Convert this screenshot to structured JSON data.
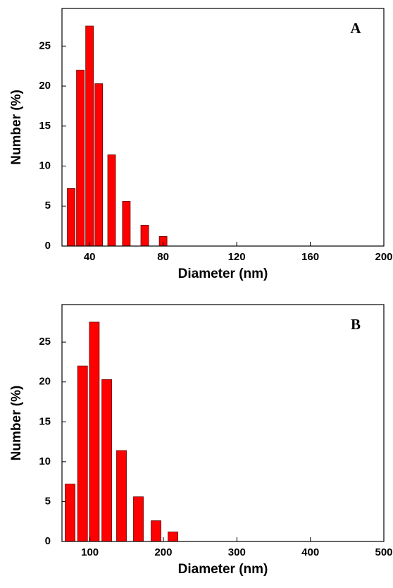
{
  "chart_data": [
    {
      "type": "bar",
      "title": "A",
      "xlabel": "Diameter (nm)",
      "ylabel": "Number (%)",
      "x": [
        30,
        35,
        40,
        45,
        52,
        60,
        70,
        80
      ],
      "values": [
        7.2,
        22,
        27.5,
        20.3,
        11.4,
        5.6,
        2.6,
        1.2
      ],
      "color": "#ff0000",
      "xlim": [
        25,
        200
      ],
      "xticks": [
        40,
        80,
        120,
        160,
        200
      ],
      "ylim": [
        0,
        29.7
      ],
      "yticks": [
        0,
        5,
        10,
        15,
        20,
        25
      ]
    },
    {
      "type": "bar",
      "title": "B",
      "xlabel": "Diameter (nm)",
      "ylabel": "Number (%)",
      "x": [
        73,
        90,
        106,
        123,
        143,
        166,
        190,
        213
      ],
      "values": [
        7.2,
        22,
        27.5,
        20.3,
        11.4,
        5.6,
        2.6,
        1.2
      ],
      "color": "#ff0000",
      "xlim": [
        62,
        500
      ],
      "xticks": [
        100,
        200,
        300,
        400,
        500
      ],
      "ylim": [
        0,
        29.7
      ],
      "yticks": [
        0,
        5,
        10,
        15,
        20,
        25
      ]
    }
  ]
}
